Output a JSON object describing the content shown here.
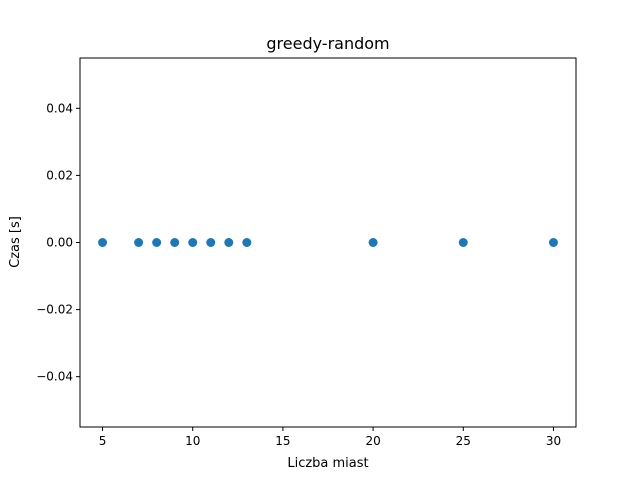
{
  "chart_data": {
    "type": "scatter",
    "title": "greedy-random",
    "xlabel": "Liczba miast",
    "ylabel": "Czas [s]",
    "xlim": [
      3.75,
      31.25
    ],
    "ylim": [
      -0.055,
      0.055
    ],
    "xticks": [
      5,
      10,
      15,
      20,
      25,
      30
    ],
    "xtick_labels": [
      "5",
      "10",
      "15",
      "20",
      "25",
      "30"
    ],
    "yticks": [
      -0.04,
      -0.02,
      0.0,
      0.02,
      0.04
    ],
    "ytick_labels": [
      "−0.04",
      "−0.02",
      "0.00",
      "0.02",
      "0.04"
    ],
    "grid": false,
    "color": "#1f77b4",
    "series": [
      {
        "x": [
          5,
          7,
          8,
          9,
          10,
          11,
          12,
          13,
          20,
          25,
          30
        ],
        "y": [
          0,
          0,
          0,
          0,
          0,
          0,
          0,
          0,
          0,
          0,
          0
        ]
      }
    ]
  }
}
